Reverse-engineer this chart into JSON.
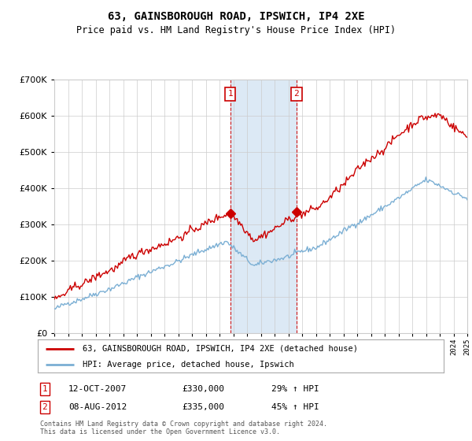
{
  "title": "63, GAINSBOROUGH ROAD, IPSWICH, IP4 2XE",
  "subtitle": "Price paid vs. HM Land Registry's House Price Index (HPI)",
  "sale1_date": "12-OCT-2007",
  "sale1_price": 330000,
  "sale1_pct": "29%",
  "sale2_date": "08-AUG-2012",
  "sale2_price": 335000,
  "sale2_pct": "45%",
  "sale1_year": 2007.78,
  "sale2_year": 2012.6,
  "hpi_line_color": "#7bafd4",
  "price_line_color": "#cc0000",
  "highlight_color": "#dce9f5",
  "grid_color": "#cccccc",
  "background_color": "#ffffff",
  "footer_text": "Contains HM Land Registry data © Crown copyright and database right 2024.\nThis data is licensed under the Open Government Licence v3.0.",
  "legend_label1": "63, GAINSBOROUGH ROAD, IPSWICH, IP4 2XE (detached house)",
  "legend_label2": "HPI: Average price, detached house, Ipswich",
  "ylim_max": 700000,
  "xmin": 1995,
  "xmax": 2025
}
